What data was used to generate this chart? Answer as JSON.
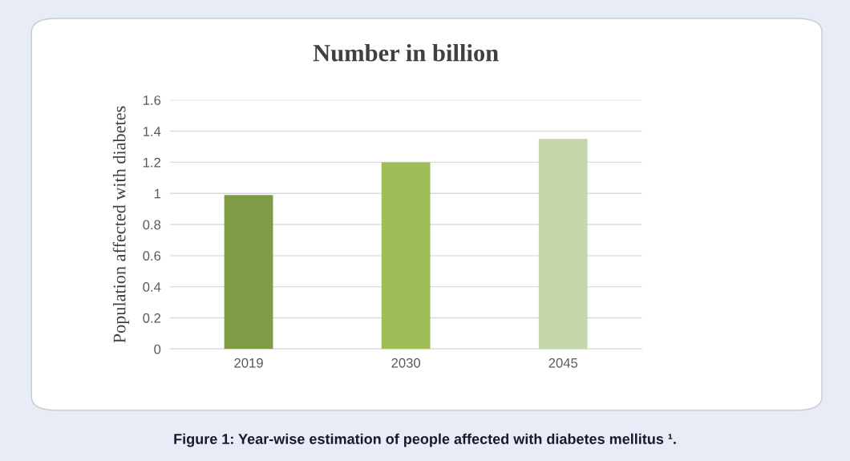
{
  "chart_data": {
    "type": "bar",
    "title": "Number in billion",
    "ylabel": "Population affected with diabetes",
    "categories": [
      "2019",
      "2030",
      "2045"
    ],
    "values": [
      0.99,
      1.2,
      1.35
    ],
    "colors": [
      "#7e9b45",
      "#9fbe58",
      "#c6d7ac"
    ],
    "ylim": [
      0,
      1.6
    ],
    "yticks": [
      0,
      0.2,
      0.4,
      0.6,
      0.8,
      1,
      1.2,
      1.4,
      1.6
    ],
    "grid": "y",
    "annotations": [
      "Figure 1: Year-wise estimation of people affected with diabetes mellitus ¹."
    ]
  }
}
